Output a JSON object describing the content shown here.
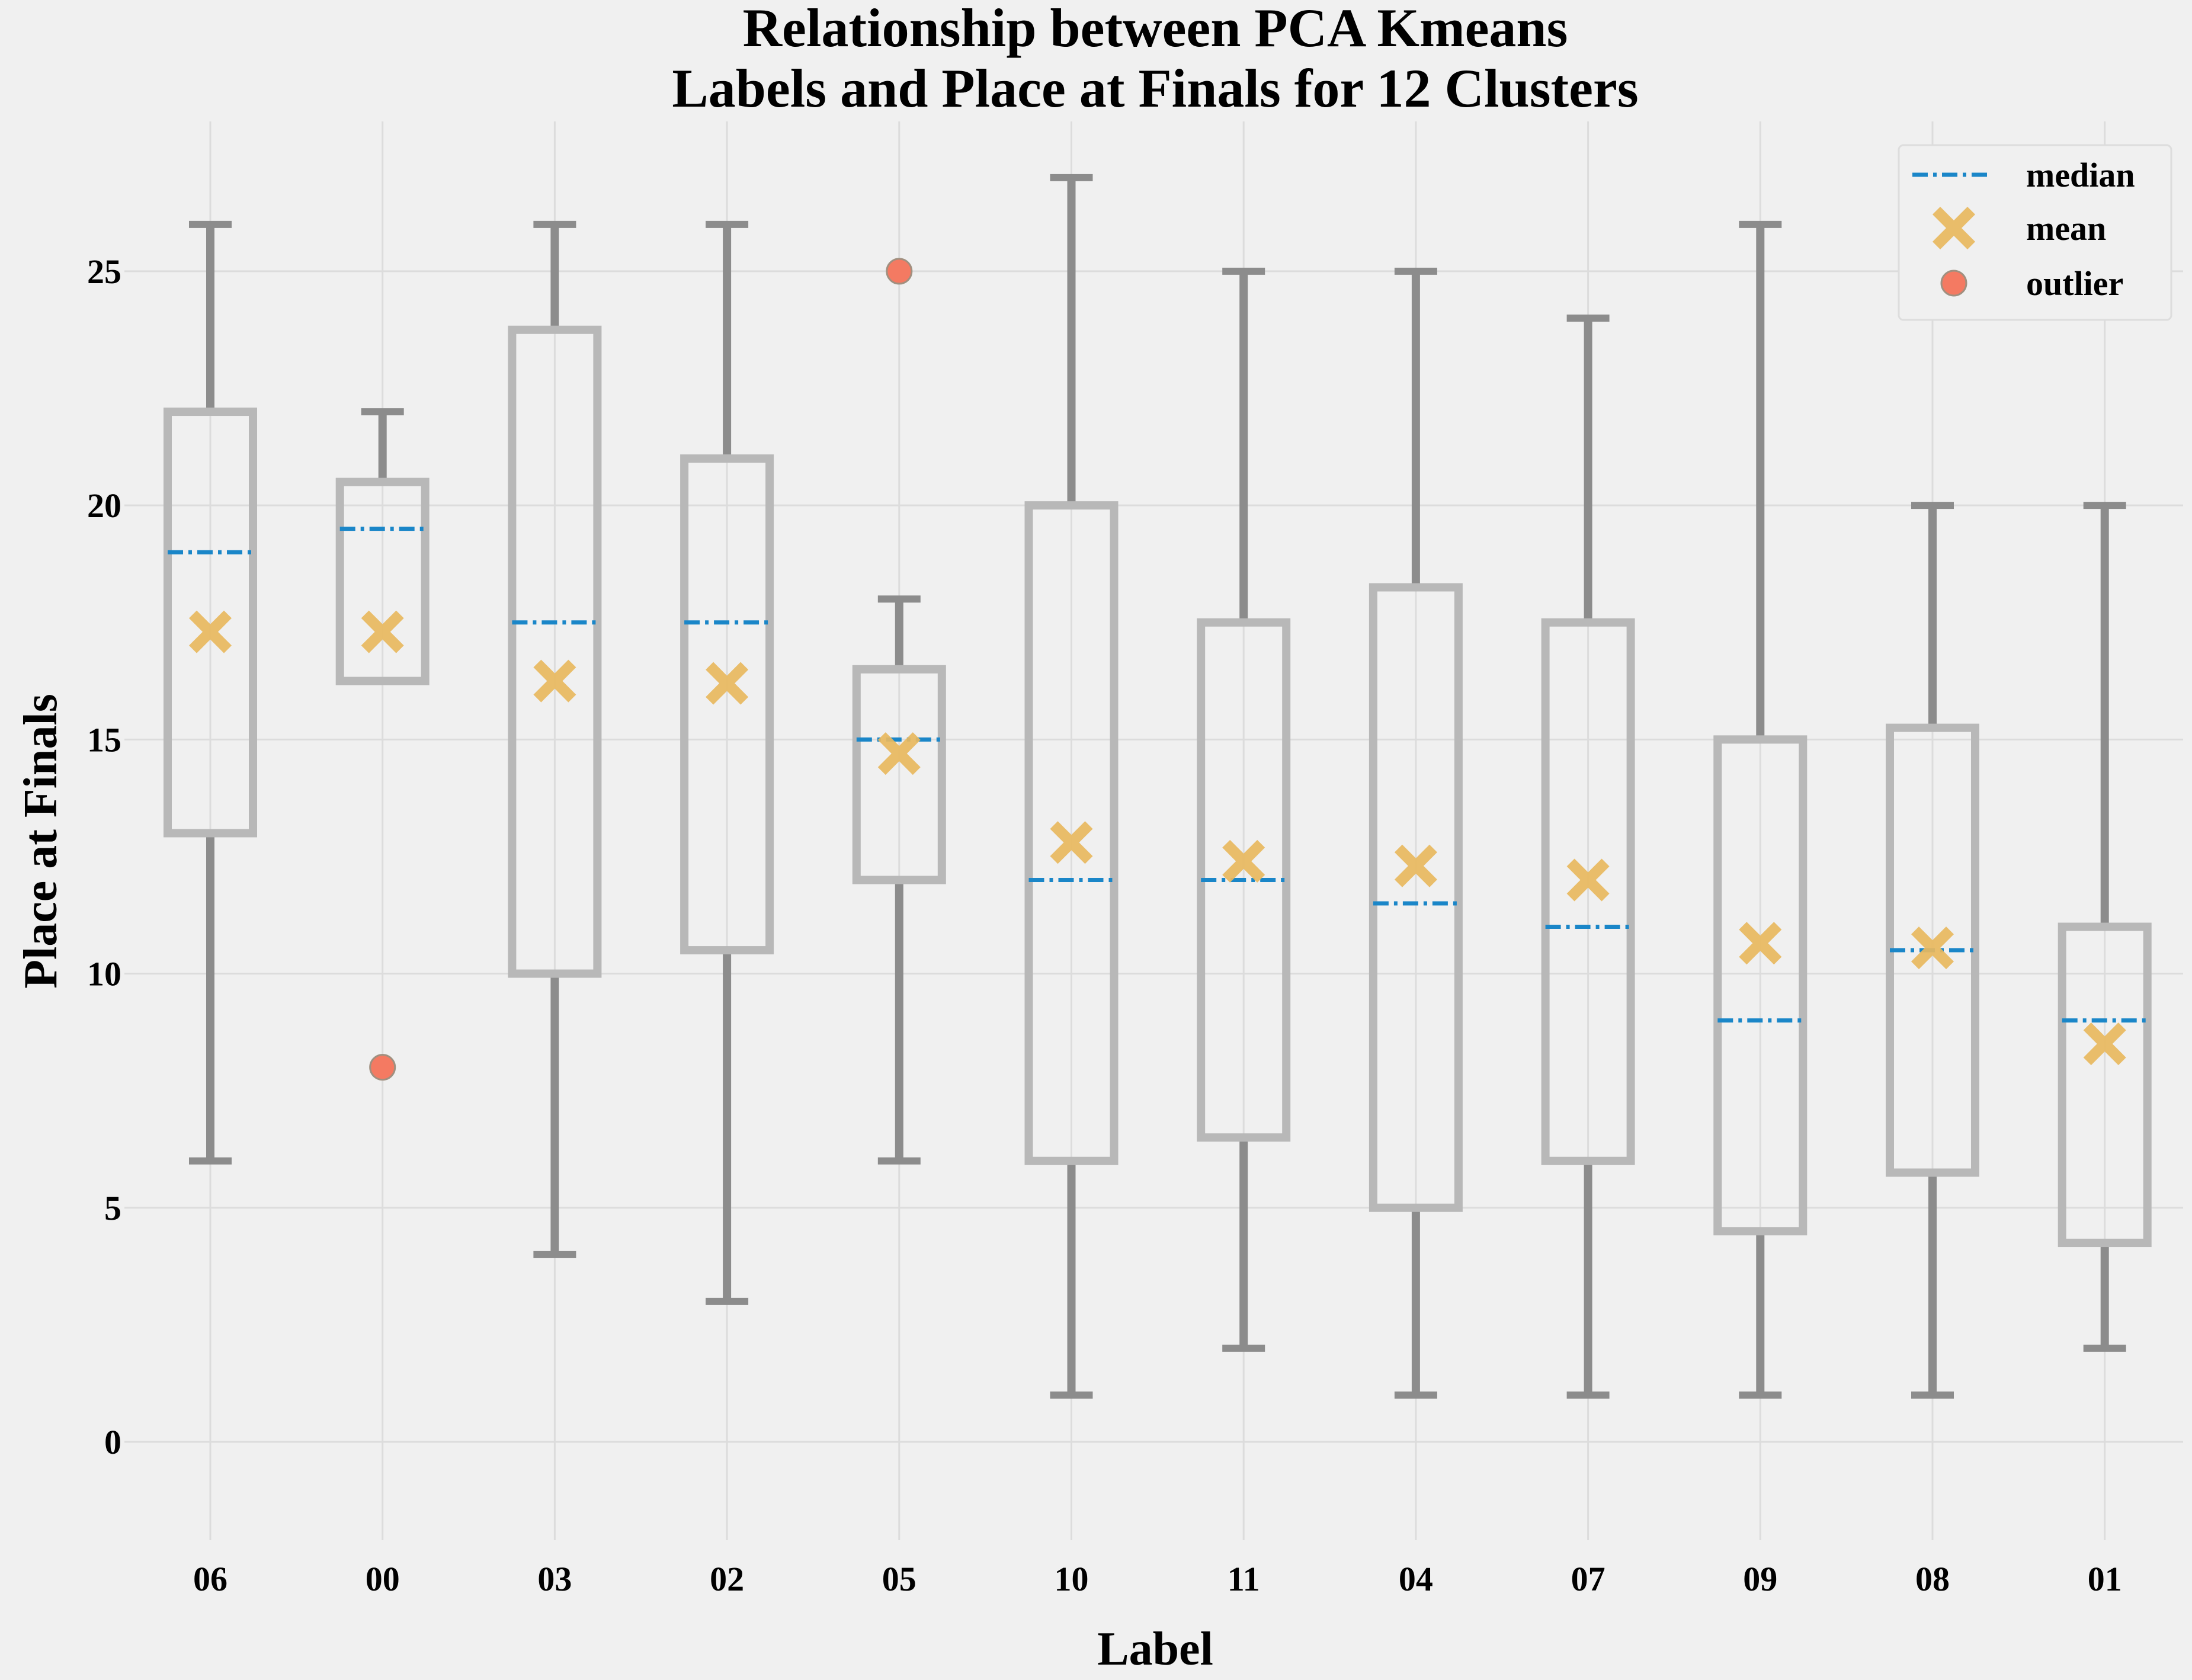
{
  "chart_data": {
    "type": "box",
    "title": "Relationship between PCA Kmeans\nLabels and Place at Finals for 12 Clusters",
    "xlabel": "Label",
    "ylabel": "Place at Finals",
    "ylim": [
      -2.1,
      28.2
    ],
    "yticks": [
      0,
      5,
      10,
      15,
      20,
      25
    ],
    "grid": true,
    "legend_position": "top-right",
    "legend": [
      {
        "key": "median",
        "label": "median"
      },
      {
        "key": "mean",
        "label": "mean"
      },
      {
        "key": "outlier",
        "label": "outlier"
      }
    ],
    "colors": {
      "background": "#f0f0f0",
      "grid": "#dcdcdc",
      "box": "#b8b8b8",
      "whisker": "#8c8c8c",
      "median": "#1a86c8",
      "mean": "#e8b95e",
      "outlier": "#f47a62"
    },
    "categories": [
      "06",
      "00",
      "03",
      "02",
      "05",
      "10",
      "11",
      "04",
      "07",
      "09",
      "08",
      "01"
    ],
    "boxes": [
      {
        "label": "06",
        "whislo": 6,
        "q1": 13,
        "med": 19,
        "q3": 22,
        "whishi": 26,
        "mean": 17.3,
        "fliers": []
      },
      {
        "label": "00",
        "whislo": 16.25,
        "q1": 16.25,
        "med": 19.5,
        "q3": 20.5,
        "whishi": 22,
        "mean": 17.3,
        "fliers": [
          8
        ]
      },
      {
        "label": "03",
        "whislo": 4,
        "q1": 10,
        "med": 17.5,
        "q3": 23.75,
        "whishi": 26,
        "mean": 16.25,
        "fliers": []
      },
      {
        "label": "02",
        "whislo": 3,
        "q1": 10.5,
        "med": 17.5,
        "q3": 21,
        "whishi": 26,
        "mean": 16.2,
        "fliers": []
      },
      {
        "label": "05",
        "whislo": 6,
        "q1": 12,
        "med": 15,
        "q3": 16.5,
        "whishi": 18,
        "mean": 14.7,
        "fliers": [
          25
        ]
      },
      {
        "label": "10",
        "whislo": 1,
        "q1": 6,
        "med": 12,
        "q3": 20,
        "whishi": 27,
        "mean": 12.8,
        "fliers": []
      },
      {
        "label": "11",
        "whislo": 2,
        "q1": 6.5,
        "med": 12,
        "q3": 17.5,
        "whishi": 25,
        "mean": 12.4,
        "fliers": []
      },
      {
        "label": "04",
        "whislo": 1,
        "q1": 5,
        "med": 11.5,
        "q3": 18.25,
        "whishi": 25,
        "mean": 12.3,
        "fliers": []
      },
      {
        "label": "07",
        "whislo": 1,
        "q1": 6,
        "med": 11,
        "q3": 17.5,
        "whishi": 24,
        "mean": 12.0,
        "fliers": []
      },
      {
        "label": "09",
        "whislo": 1,
        "q1": 4.5,
        "med": 9,
        "q3": 15,
        "whishi": 26,
        "mean": 10.65,
        "fliers": []
      },
      {
        "label": "08",
        "whislo": 1,
        "q1": 5.75,
        "med": 10.5,
        "q3": 15.25,
        "whishi": 20,
        "mean": 10.55,
        "fliers": []
      },
      {
        "label": "01",
        "whislo": 2,
        "q1": 4.25,
        "med": 9,
        "q3": 11,
        "whishi": 20,
        "mean": 8.5,
        "fliers": []
      }
    ]
  }
}
